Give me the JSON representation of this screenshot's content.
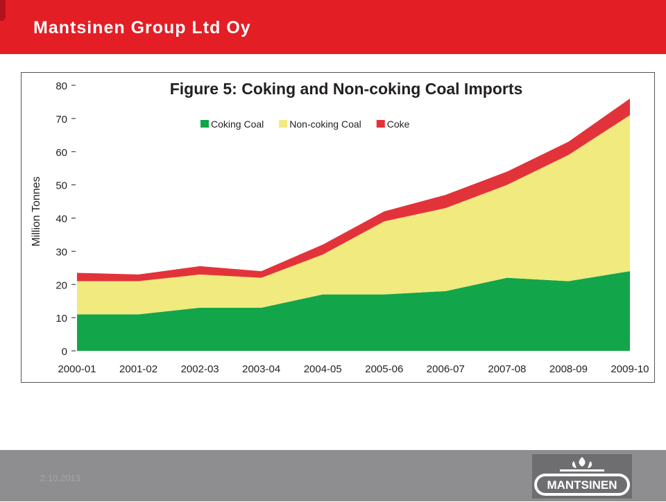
{
  "header": {
    "title": "Mantsinen Group Ltd Oy"
  },
  "footer": {
    "date": "2.10.2013"
  },
  "logo": {
    "text": "MANTSINEN"
  },
  "colors": {
    "header_red": "#e31e25",
    "footer_gray": "#8e8e90",
    "coking": "#13a54a",
    "noncoking": "#f1ea7e",
    "coke": "#e3333a"
  },
  "chart_data": {
    "type": "area",
    "stacked": true,
    "title": "Figure 5: Coking and Non-coking Coal Imports",
    "ylabel": "Million Tonnes",
    "xlabel": "",
    "categories": [
      "2000-01",
      "2001-02",
      "2002-03",
      "2003-04",
      "2004-05",
      "2005-06",
      "2006-07",
      "2007-08",
      "2008-09",
      "2009-10"
    ],
    "yticks": [
      0,
      10,
      20,
      30,
      40,
      50,
      60,
      70,
      80
    ],
    "ylim": [
      0,
      80
    ],
    "grid": false,
    "legend_position": "top-center",
    "series": [
      {
        "name": "Coking Coal",
        "color": "#13a54a",
        "values": [
          11,
          11,
          13,
          13,
          17,
          17,
          18,
          22,
          21,
          24
        ]
      },
      {
        "name": "Non-coking Coal",
        "color": "#f1ea7e",
        "values": [
          10,
          10,
          10,
          9,
          12,
          22,
          25,
          28,
          38,
          47
        ]
      },
      {
        "name": "Coke",
        "color": "#e3333a",
        "values": [
          2.5,
          2,
          2.5,
          2,
          3,
          3,
          4,
          4,
          4,
          5
        ]
      }
    ]
  }
}
